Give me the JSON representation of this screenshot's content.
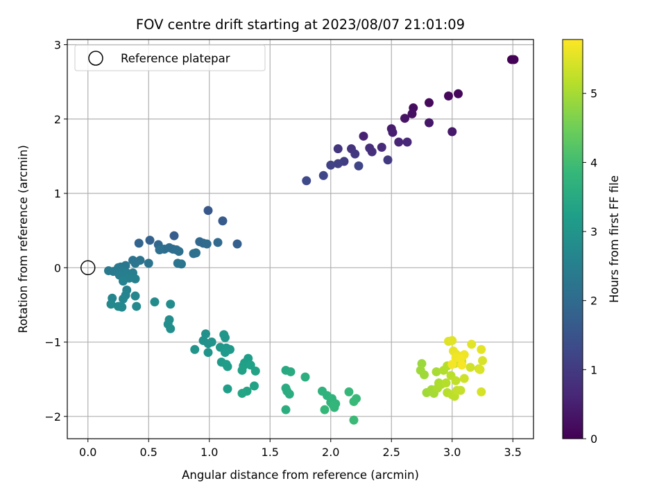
{
  "chart_data": {
    "type": "scatter",
    "title": "FOV centre drift starting at 2023/08/07 21:01:09",
    "xlabel": "Angular distance from reference (arcmin)",
    "ylabel": "Rotation from reference (arcmin)",
    "xlim": [
      -0.17,
      3.67
    ],
    "ylim": [
      -2.3,
      3.07
    ],
    "xticks": [
      "0.0",
      "0.5",
      "1.0",
      "1.5",
      "2.0",
      "2.5",
      "3.0",
      "3.5"
    ],
    "yticks": [
      "−2",
      "−1",
      "0",
      "1",
      "2",
      "3"
    ],
    "grid": true,
    "legend": {
      "placement": "top-left",
      "label": "Reference platepar"
    },
    "reference_point": {
      "x": 0.0,
      "y": 0.0
    },
    "colorbar": {
      "label": "Hours from first FF file",
      "colormap": "viridis",
      "range": [
        0,
        5.78
      ],
      "ticks": [
        "0",
        "1",
        "2",
        "3",
        "4",
        "5"
      ]
    },
    "colors": {
      "viridis": [
        "#440154",
        "#482878",
        "#3e4989",
        "#31688e",
        "#26828e",
        "#1f9e89",
        "#35b779",
        "#6ece58",
        "#b5de2b",
        "#fde725"
      ]
    },
    "points": [
      {
        "x": 3.49,
        "y": 2.8,
        "c": 0.0
      },
      {
        "x": 3.51,
        "y": 2.8,
        "c": 0.03
      },
      {
        "x": 3.05,
        "y": 2.34,
        "c": 0.1
      },
      {
        "x": 2.97,
        "y": 2.31,
        "c": 0.12
      },
      {
        "x": 2.81,
        "y": 2.22,
        "c": 0.15
      },
      {
        "x": 2.68,
        "y": 2.15,
        "c": 0.2
      },
      {
        "x": 2.67,
        "y": 2.07,
        "c": 0.25
      },
      {
        "x": 2.61,
        "y": 2.01,
        "c": 0.3
      },
      {
        "x": 2.81,
        "y": 1.95,
        "c": 0.35
      },
      {
        "x": 3.0,
        "y": 1.83,
        "c": 0.4
      },
      {
        "x": 2.5,
        "y": 1.87,
        "c": 0.45
      },
      {
        "x": 2.51,
        "y": 1.82,
        "c": 0.5
      },
      {
        "x": 2.27,
        "y": 1.77,
        "c": 0.55
      },
      {
        "x": 2.56,
        "y": 1.69,
        "c": 0.6
      },
      {
        "x": 2.63,
        "y": 1.69,
        "c": 0.65
      },
      {
        "x": 2.42,
        "y": 1.62,
        "c": 0.7
      },
      {
        "x": 2.32,
        "y": 1.61,
        "c": 0.75
      },
      {
        "x": 2.34,
        "y": 1.56,
        "c": 0.8
      },
      {
        "x": 2.17,
        "y": 1.6,
        "c": 0.85
      },
      {
        "x": 2.06,
        "y": 1.6,
        "c": 0.9
      },
      {
        "x": 2.2,
        "y": 1.53,
        "c": 0.95
      },
      {
        "x": 2.47,
        "y": 1.45,
        "c": 1.0
      },
      {
        "x": 2.11,
        "y": 1.43,
        "c": 1.05
      },
      {
        "x": 2.06,
        "y": 1.4,
        "c": 1.1
      },
      {
        "x": 2.0,
        "y": 1.38,
        "c": 1.15
      },
      {
        "x": 2.23,
        "y": 1.37,
        "c": 1.2
      },
      {
        "x": 1.94,
        "y": 1.24,
        "c": 1.25
      },
      {
        "x": 1.8,
        "y": 1.17,
        "c": 1.3
      },
      {
        "x": 0.99,
        "y": 0.77,
        "c": 1.6
      },
      {
        "x": 1.11,
        "y": 0.63,
        "c": 1.65
      },
      {
        "x": 0.71,
        "y": 0.43,
        "c": 1.7
      },
      {
        "x": 1.23,
        "y": 0.32,
        "c": 1.75
      },
      {
        "x": 0.51,
        "y": 0.37,
        "c": 1.8
      },
      {
        "x": 0.42,
        "y": 0.33,
        "c": 1.85
      },
      {
        "x": 0.58,
        "y": 0.31,
        "c": 1.9
      },
      {
        "x": 0.92,
        "y": 0.35,
        "c": 1.92
      },
      {
        "x": 0.95,
        "y": 0.33,
        "c": 1.95
      },
      {
        "x": 1.07,
        "y": 0.34,
        "c": 1.97
      },
      {
        "x": 0.98,
        "y": 0.32,
        "c": 2.0
      },
      {
        "x": 0.67,
        "y": 0.27,
        "c": 2.02
      },
      {
        "x": 0.63,
        "y": 0.25,
        "c": 2.04
      },
      {
        "x": 0.7,
        "y": 0.25,
        "c": 2.06
      },
      {
        "x": 0.73,
        "y": 0.24,
        "c": 2.08
      },
      {
        "x": 0.75,
        "y": 0.22,
        "c": 2.1
      },
      {
        "x": 0.59,
        "y": 0.24,
        "c": 2.12
      },
      {
        "x": 0.89,
        "y": 0.2,
        "c": 2.14
      },
      {
        "x": 0.87,
        "y": 0.19,
        "c": 2.16
      },
      {
        "x": 0.37,
        "y": 0.1,
        "c": 2.18
      },
      {
        "x": 0.43,
        "y": 0.1,
        "c": 2.2
      },
      {
        "x": 0.5,
        "y": 0.06,
        "c": 2.22
      },
      {
        "x": 0.74,
        "y": 0.06,
        "c": 2.24
      },
      {
        "x": 0.77,
        "y": 0.05,
        "c": 2.26
      },
      {
        "x": 0.39,
        "y": 0.06,
        "c": 2.28
      },
      {
        "x": 0.31,
        "y": 0.03,
        "c": 2.3
      },
      {
        "x": 0.27,
        "y": 0.01,
        "c": 2.32
      },
      {
        "x": 0.25,
        "y": 0.0,
        "c": 2.34
      },
      {
        "x": 0.17,
        "y": -0.04,
        "c": 2.36
      },
      {
        "x": 0.21,
        "y": -0.05,
        "c": 2.38
      },
      {
        "x": 0.25,
        "y": -0.06,
        "c": 2.4
      },
      {
        "x": 0.29,
        "y": -0.05,
        "c": 2.42
      },
      {
        "x": 0.32,
        "y": -0.07,
        "c": 2.44
      },
      {
        "x": 0.37,
        "y": -0.07,
        "c": 2.46
      },
      {
        "x": 0.26,
        "y": -0.1,
        "c": 2.48
      },
      {
        "x": 0.3,
        "y": -0.12,
        "c": 2.5
      },
      {
        "x": 0.34,
        "y": -0.14,
        "c": 2.52
      },
      {
        "x": 0.39,
        "y": -0.15,
        "c": 2.54
      },
      {
        "x": 0.29,
        "y": -0.18,
        "c": 2.56
      },
      {
        "x": 0.32,
        "y": -0.3,
        "c": 2.6
      },
      {
        "x": 0.31,
        "y": -0.37,
        "c": 2.62
      },
      {
        "x": 0.2,
        "y": -0.41,
        "c": 2.64
      },
      {
        "x": 0.29,
        "y": -0.42,
        "c": 2.66
      },
      {
        "x": 0.39,
        "y": -0.38,
        "c": 2.68
      },
      {
        "x": 0.19,
        "y": -0.49,
        "c": 2.7
      },
      {
        "x": 0.25,
        "y": -0.52,
        "c": 2.72
      },
      {
        "x": 0.28,
        "y": -0.53,
        "c": 2.74
      },
      {
        "x": 0.4,
        "y": -0.52,
        "c": 2.76
      },
      {
        "x": 0.55,
        "y": -0.46,
        "c": 2.78
      },
      {
        "x": 0.68,
        "y": -0.49,
        "c": 2.8
      },
      {
        "x": 0.67,
        "y": -0.7,
        "c": 2.82
      },
      {
        "x": 0.66,
        "y": -0.76,
        "c": 2.84
      },
      {
        "x": 0.68,
        "y": -0.82,
        "c": 2.86
      },
      {
        "x": 0.97,
        "y": -0.89,
        "c": 2.9
      },
      {
        "x": 0.95,
        "y": -0.98,
        "c": 2.92
      },
      {
        "x": 0.99,
        "y": -1.02,
        "c": 2.94
      },
      {
        "x": 1.02,
        "y": -1.0,
        "c": 2.96
      },
      {
        "x": 0.88,
        "y": -1.1,
        "c": 2.98
      },
      {
        "x": 0.99,
        "y": -1.14,
        "c": 3.0
      },
      {
        "x": 1.12,
        "y": -0.9,
        "c": 3.02
      },
      {
        "x": 1.13,
        "y": -0.94,
        "c": 3.04
      },
      {
        "x": 1.09,
        "y": -1.07,
        "c": 3.06
      },
      {
        "x": 1.14,
        "y": -1.08,
        "c": 3.08
      },
      {
        "x": 1.17,
        "y": -1.1,
        "c": 3.1
      },
      {
        "x": 1.13,
        "y": -1.14,
        "c": 3.12
      },
      {
        "x": 1.1,
        "y": -1.27,
        "c": 3.14
      },
      {
        "x": 1.14,
        "y": -1.3,
        "c": 3.16
      },
      {
        "x": 1.15,
        "y": -1.33,
        "c": 3.18
      },
      {
        "x": 1.15,
        "y": -1.63,
        "c": 3.2
      },
      {
        "x": 1.32,
        "y": -1.22,
        "c": 3.22
      },
      {
        "x": 1.29,
        "y": -1.28,
        "c": 3.24
      },
      {
        "x": 1.28,
        "y": -1.32,
        "c": 3.26
      },
      {
        "x": 1.34,
        "y": -1.31,
        "c": 3.28
      },
      {
        "x": 1.27,
        "y": -1.38,
        "c": 3.3
      },
      {
        "x": 1.38,
        "y": -1.39,
        "c": 3.32
      },
      {
        "x": 1.37,
        "y": -1.59,
        "c": 3.34
      },
      {
        "x": 1.31,
        "y": -1.66,
        "c": 3.36
      },
      {
        "x": 1.27,
        "y": -1.69,
        "c": 3.38
      },
      {
        "x": 1.63,
        "y": -1.38,
        "c": 3.5
      },
      {
        "x": 1.67,
        "y": -1.4,
        "c": 3.52
      },
      {
        "x": 1.63,
        "y": -1.62,
        "c": 3.54
      },
      {
        "x": 1.64,
        "y": -1.66,
        "c": 3.56
      },
      {
        "x": 1.66,
        "y": -1.7,
        "c": 3.58
      },
      {
        "x": 1.63,
        "y": -1.91,
        "c": 3.6
      },
      {
        "x": 1.79,
        "y": -1.47,
        "c": 3.62
      },
      {
        "x": 1.93,
        "y": -1.66,
        "c": 3.7
      },
      {
        "x": 1.97,
        "y": -1.72,
        "c": 3.72
      },
      {
        "x": 2.01,
        "y": -1.76,
        "c": 3.74
      },
      {
        "x": 2.0,
        "y": -1.81,
        "c": 3.76
      },
      {
        "x": 2.04,
        "y": -1.83,
        "c": 3.78
      },
      {
        "x": 2.03,
        "y": -1.88,
        "c": 3.8
      },
      {
        "x": 2.02,
        "y": -1.85,
        "c": 3.82
      },
      {
        "x": 1.95,
        "y": -1.91,
        "c": 3.84
      },
      {
        "x": 2.15,
        "y": -1.67,
        "c": 3.86
      },
      {
        "x": 2.21,
        "y": -1.76,
        "c": 3.88
      },
      {
        "x": 2.19,
        "y": -1.8,
        "c": 3.9
      },
      {
        "x": 2.19,
        "y": -2.05,
        "c": 3.92
      },
      {
        "x": 2.75,
        "y": -1.29,
        "c": 4.9
      },
      {
        "x": 2.74,
        "y": -1.38,
        "c": 4.92
      },
      {
        "x": 2.77,
        "y": -1.44,
        "c": 4.94
      },
      {
        "x": 2.79,
        "y": -1.68,
        "c": 4.96
      },
      {
        "x": 2.83,
        "y": -1.64,
        "c": 4.98
      },
      {
        "x": 2.85,
        "y": -1.69,
        "c": 5.0
      },
      {
        "x": 2.87,
        "y": -1.4,
        "c": 5.02
      },
      {
        "x": 2.89,
        "y": -1.55,
        "c": 5.04
      },
      {
        "x": 2.88,
        "y": -1.62,
        "c": 5.06
      },
      {
        "x": 2.91,
        "y": -1.57,
        "c": 5.08
      },
      {
        "x": 2.93,
        "y": -1.38,
        "c": 5.1
      },
      {
        "x": 2.96,
        "y": -1.32,
        "c": 5.12
      },
      {
        "x": 2.95,
        "y": -1.55,
        "c": 5.14
      },
      {
        "x": 2.96,
        "y": -1.68,
        "c": 5.16
      },
      {
        "x": 2.99,
        "y": -1.45,
        "c": 5.18
      },
      {
        "x": 3.0,
        "y": -1.71,
        "c": 5.2
      },
      {
        "x": 3.02,
        "y": -1.73,
        "c": 5.22
      },
      {
        "x": 3.03,
        "y": -1.52,
        "c": 5.24
      },
      {
        "x": 3.04,
        "y": -1.65,
        "c": 5.26
      },
      {
        "x": 3.07,
        "y": -1.65,
        "c": 5.28
      },
      {
        "x": 3.02,
        "y": -1.29,
        "c": 5.3
      },
      {
        "x": 3.05,
        "y": -1.24,
        "c": 5.32
      },
      {
        "x": 3.08,
        "y": -1.26,
        "c": 5.34
      },
      {
        "x": 3.1,
        "y": -1.49,
        "c": 5.36
      },
      {
        "x": 3.15,
        "y": -1.34,
        "c": 5.38
      },
      {
        "x": 3.22,
        "y": -1.36,
        "c": 5.4
      },
      {
        "x": 3.24,
        "y": -1.67,
        "c": 5.42
      },
      {
        "x": 3.25,
        "y": -1.25,
        "c": 5.44
      },
      {
        "x": 3.23,
        "y": -1.37,
        "c": 5.46
      },
      {
        "x": 2.97,
        "y": -0.99,
        "c": 5.5
      },
      {
        "x": 3.0,
        "y": -0.98,
        "c": 5.52
      },
      {
        "x": 3.16,
        "y": -1.03,
        "c": 5.54
      },
      {
        "x": 3.24,
        "y": -1.1,
        "c": 5.56
      },
      {
        "x": 3.01,
        "y": -1.12,
        "c": 5.58
      },
      {
        "x": 3.03,
        "y": -1.16,
        "c": 5.6
      },
      {
        "x": 3.06,
        "y": -1.19,
        "c": 5.62
      },
      {
        "x": 3.1,
        "y": -1.17,
        "c": 5.64
      },
      {
        "x": 3.03,
        "y": -1.21,
        "c": 5.66
      },
      {
        "x": 3.07,
        "y": -1.22,
        "c": 5.68
      },
      {
        "x": 3.0,
        "y": -1.3,
        "c": 5.7
      },
      {
        "x": 3.08,
        "y": -1.31,
        "c": 5.72
      }
    ]
  }
}
